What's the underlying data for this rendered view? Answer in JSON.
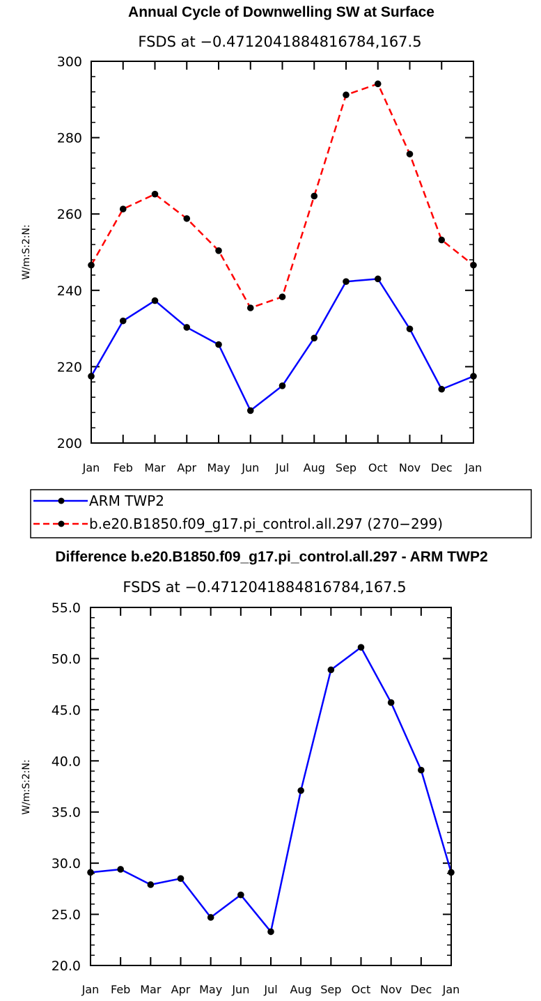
{
  "chart_data": [
    {
      "type": "line",
      "title": "Annual Cycle of Downwelling SW at Surface",
      "subtitle": "FSDS at −0.4712041884816784,167.5",
      "xlabel": "",
      "ylabel": "W/m:S:2:N:",
      "categories": [
        "Jan",
        "Feb",
        "Mar",
        "Apr",
        "May",
        "Jun",
        "Jul",
        "Aug",
        "Sep",
        "Oct",
        "Nov",
        "Dec",
        "Jan"
      ],
      "ylim": [
        200,
        300
      ],
      "yticks": [
        "200",
        "220",
        "240",
        "260",
        "280",
        "300"
      ],
      "yticks_values": [
        200,
        220,
        240,
        260,
        280,
        300
      ],
      "series": [
        {
          "name": "ARM TWP2",
          "color": "#0000ff",
          "dash": "solid",
          "values": [
            217.5,
            232.0,
            237.3,
            230.3,
            225.8,
            208.5,
            215.0,
            227.5,
            242.3,
            243.0,
            229.9,
            214.1,
            217.5
          ]
        },
        {
          "name": "b.e20.B1850.f09_g17.pi_control.all.297 (270−299)",
          "color": "#ff0000",
          "dash": "dashed",
          "values": [
            246.6,
            261.3,
            265.2,
            258.8,
            250.4,
            235.4,
            238.3,
            264.7,
            291.2,
            294.1,
            275.7,
            253.2,
            246.6
          ]
        }
      ],
      "legend": [
        "ARM TWP2",
        "b.e20.B1850.f09_g17.pi_control.all.297 (270−299)"
      ]
    },
    {
      "type": "line",
      "title": "Difference b.e20.B1850.f09_g17.pi_control.all.297 - ARM TWP2",
      "subtitle": "FSDS at −0.4712041884816784,167.5",
      "xlabel": "",
      "ylabel": "W/m:S:2:N:",
      "categories": [
        "Jan",
        "Feb",
        "Mar",
        "Apr",
        "May",
        "Jun",
        "Jul",
        "Aug",
        "Sep",
        "Oct",
        "Nov",
        "Dec",
        "Jan"
      ],
      "ylim": [
        20,
        55
      ],
      "yticks": [
        "20.0",
        "25.0",
        "30.0",
        "35.0",
        "40.0",
        "45.0",
        "50.0",
        "55.0"
      ],
      "yticks_values": [
        20,
        25,
        30,
        35,
        40,
        45,
        50,
        55
      ],
      "series": [
        {
          "name": "Difference",
          "color": "#0000ff",
          "dash": "solid",
          "values": [
            29.1,
            29.4,
            27.9,
            28.5,
            24.7,
            26.9,
            23.3,
            37.1,
            48.9,
            51.1,
            45.7,
            39.1,
            29.1
          ]
        }
      ]
    }
  ]
}
